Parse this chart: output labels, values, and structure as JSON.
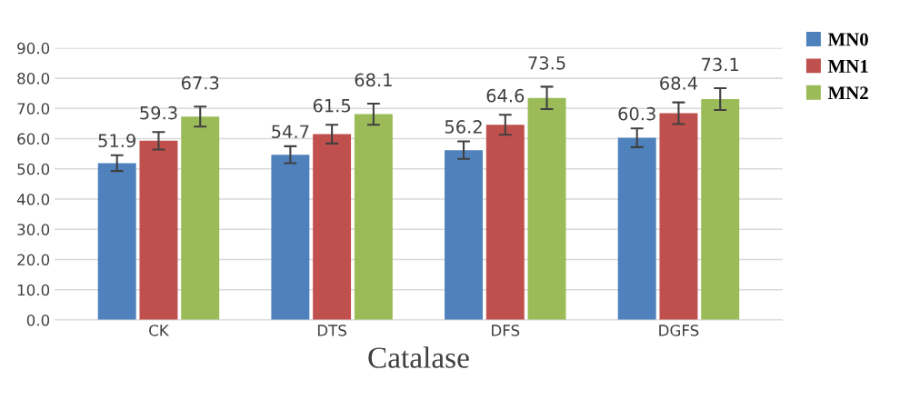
{
  "chart_data": {
    "type": "bar",
    "xlabel": "Catalase",
    "categories": [
      "CK",
      "DTS",
      "DFS",
      "DGFS"
    ],
    "series": [
      {
        "name": "MN0",
        "color": "#4f81bd",
        "values": [
          51.9,
          54.7,
          56.2,
          60.3
        ],
        "errors": [
          2.6,
          2.8,
          2.9,
          3.1
        ]
      },
      {
        "name": "MN1",
        "color": "#c0504d",
        "values": [
          59.3,
          61.5,
          64.6,
          68.4
        ],
        "errors": [
          2.9,
          3.1,
          3.3,
          3.6
        ]
      },
      {
        "name": "MN2",
        "color": "#9bbb59",
        "values": [
          67.3,
          68.1,
          73.5,
          73.1
        ],
        "errors": [
          3.3,
          3.5,
          3.7,
          3.6
        ]
      }
    ],
    "ylim": [
      0,
      90
    ],
    "yticks": [
      {
        "value": 0,
        "label": "0.0"
      },
      {
        "value": 10,
        "label": "10.0"
      },
      {
        "value": 20,
        "label": "20.0"
      },
      {
        "value": 30,
        "label": "30.0"
      },
      {
        "value": 40,
        "label": "40.0"
      },
      {
        "value": 50,
        "label": "50.0"
      },
      {
        "value": 60,
        "label": "60.0"
      },
      {
        "value": 70,
        "label": "70.0"
      },
      {
        "value": 80,
        "label": "80.0"
      },
      {
        "value": 90,
        "label": "90.0"
      }
    ],
    "grid": "y",
    "legend": "right",
    "data_labels": true
  }
}
